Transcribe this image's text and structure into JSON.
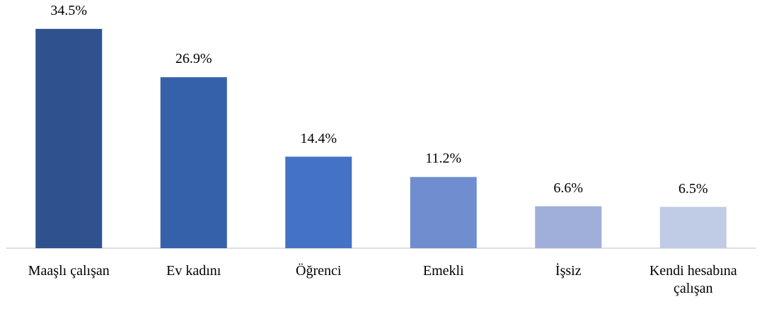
{
  "chart_data": {
    "type": "bar",
    "categories": [
      "Maaşlı çalışan",
      "Ev kadını",
      "Öğrenci",
      "Emekli",
      "İşsiz",
      "Kendi hesabına çalışan"
    ],
    "values": [
      34.5,
      26.9,
      14.4,
      11.2,
      6.6,
      6.5
    ],
    "value_labels": [
      "34.5%",
      "26.9%",
      "14.4%",
      "11.2%",
      "6.6%",
      "6.5%"
    ],
    "colors": [
      "#2f528f",
      "#3561ab",
      "#4472c4",
      "#6f8dcf",
      "#a0afda",
      "#c0cbe5"
    ]
  }
}
